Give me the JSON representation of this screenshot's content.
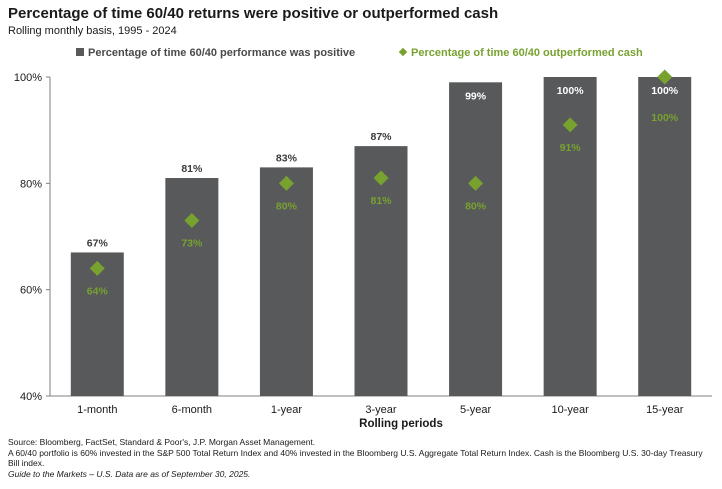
{
  "title": "Percentage of time 60/40 returns were positive or outperformed cash",
  "subtitle": "Rolling monthly basis, 1995 - 2024",
  "colors": {
    "bar": "#58595b",
    "diamond": "#78a22f",
    "bar_label": "#3a3a3a",
    "bar_label_inside": "#ffffff"
  },
  "chart_data": {
    "type": "bar",
    "categories": [
      "1-month",
      "6-month",
      "1-year",
      "3-year",
      "5-year",
      "10-year",
      "15-year"
    ],
    "series": [
      {
        "name": "Percentage of time 60/40 performance was positive",
        "type": "bar",
        "values": [
          67,
          81,
          83,
          87,
          99,
          100,
          100
        ],
        "labels": [
          "67%",
          "81%",
          "83%",
          "87%",
          "99%",
          "100%",
          "100%"
        ]
      },
      {
        "name": "Percentage of time 60/40 outperformed cash",
        "type": "scatter",
        "marker": "diamond",
        "values": [
          64,
          73,
          80,
          81,
          80,
          91,
          100
        ],
        "labels": [
          "64%",
          "73%",
          "80%",
          "81%",
          "80%",
          "91%",
          "100%"
        ]
      }
    ],
    "xlabel": "Rolling periods",
    "ylabel": "",
    "ylim": [
      40,
      100
    ],
    "yticks": [
      40,
      60,
      80,
      100
    ],
    "ytick_labels": [
      "40%",
      "60%",
      "80%",
      "100%"
    ],
    "grid": false,
    "legend": "top"
  },
  "footer": {
    "line1": "Source: Bloomberg, FactSet, Standard & Poor's, J.P. Morgan Asset Management.",
    "line2": "A 60/40 portfolio is 60% invested in the S&P 500 Total Return Index and 40% invested in the Bloomberg U.S. Aggregate Total Return Index. Cash is the Bloomberg U.S. 30-day Treasury Bill index.",
    "line3": "Guide to the Markets – U.S. Data are as of September 30, 2025."
  }
}
